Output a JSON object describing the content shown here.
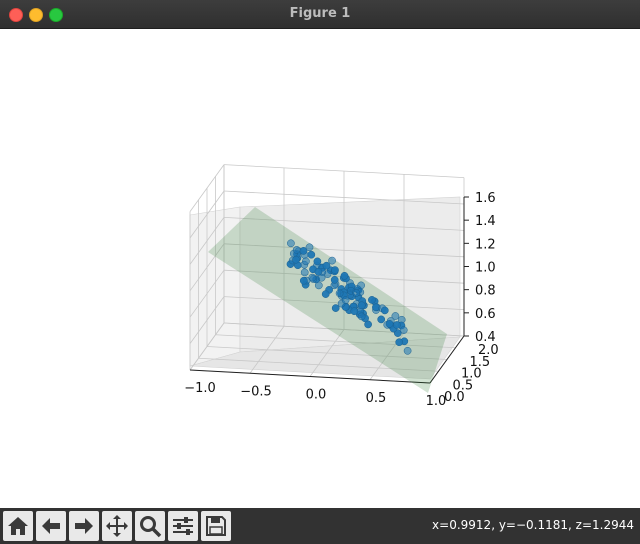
{
  "window": {
    "title": "Figure 1"
  },
  "toolbar": {
    "buttons": [
      {
        "name": "home-button",
        "icon": "home-icon"
      },
      {
        "name": "back-button",
        "icon": "left-arrow-icon"
      },
      {
        "name": "forward-button",
        "icon": "right-arrow-icon"
      },
      {
        "name": "pan-button",
        "icon": "move-icon"
      },
      {
        "name": "zoom-button",
        "icon": "magnifier-icon"
      },
      {
        "name": "configure-subplots-button",
        "icon": "sliders-icon"
      },
      {
        "name": "save-button",
        "icon": "floppy-icon"
      }
    ],
    "coords": "x=0.9912, y=−0.1181, z=1.2944"
  },
  "chart_data": {
    "type": "scatter",
    "projection": "3d",
    "x_ticks": [
      "−1.0",
      "−0.5",
      "0.0",
      "0.5",
      "1.0"
    ],
    "y_ticks": [
      "0.0",
      "0.5",
      "1.0",
      "1.5",
      "2.0"
    ],
    "z_ticks": [
      "0.4",
      "0.6",
      "0.8",
      "1.0",
      "1.2",
      "1.4",
      "1.6"
    ],
    "xlim": [
      -1.0,
      1.0
    ],
    "ylim": [
      0.0,
      2.0
    ],
    "zlim": [
      0.4,
      1.6
    ],
    "grid": true,
    "plane_color": "#2e7d32",
    "point_color": "#1f77b4"
  }
}
